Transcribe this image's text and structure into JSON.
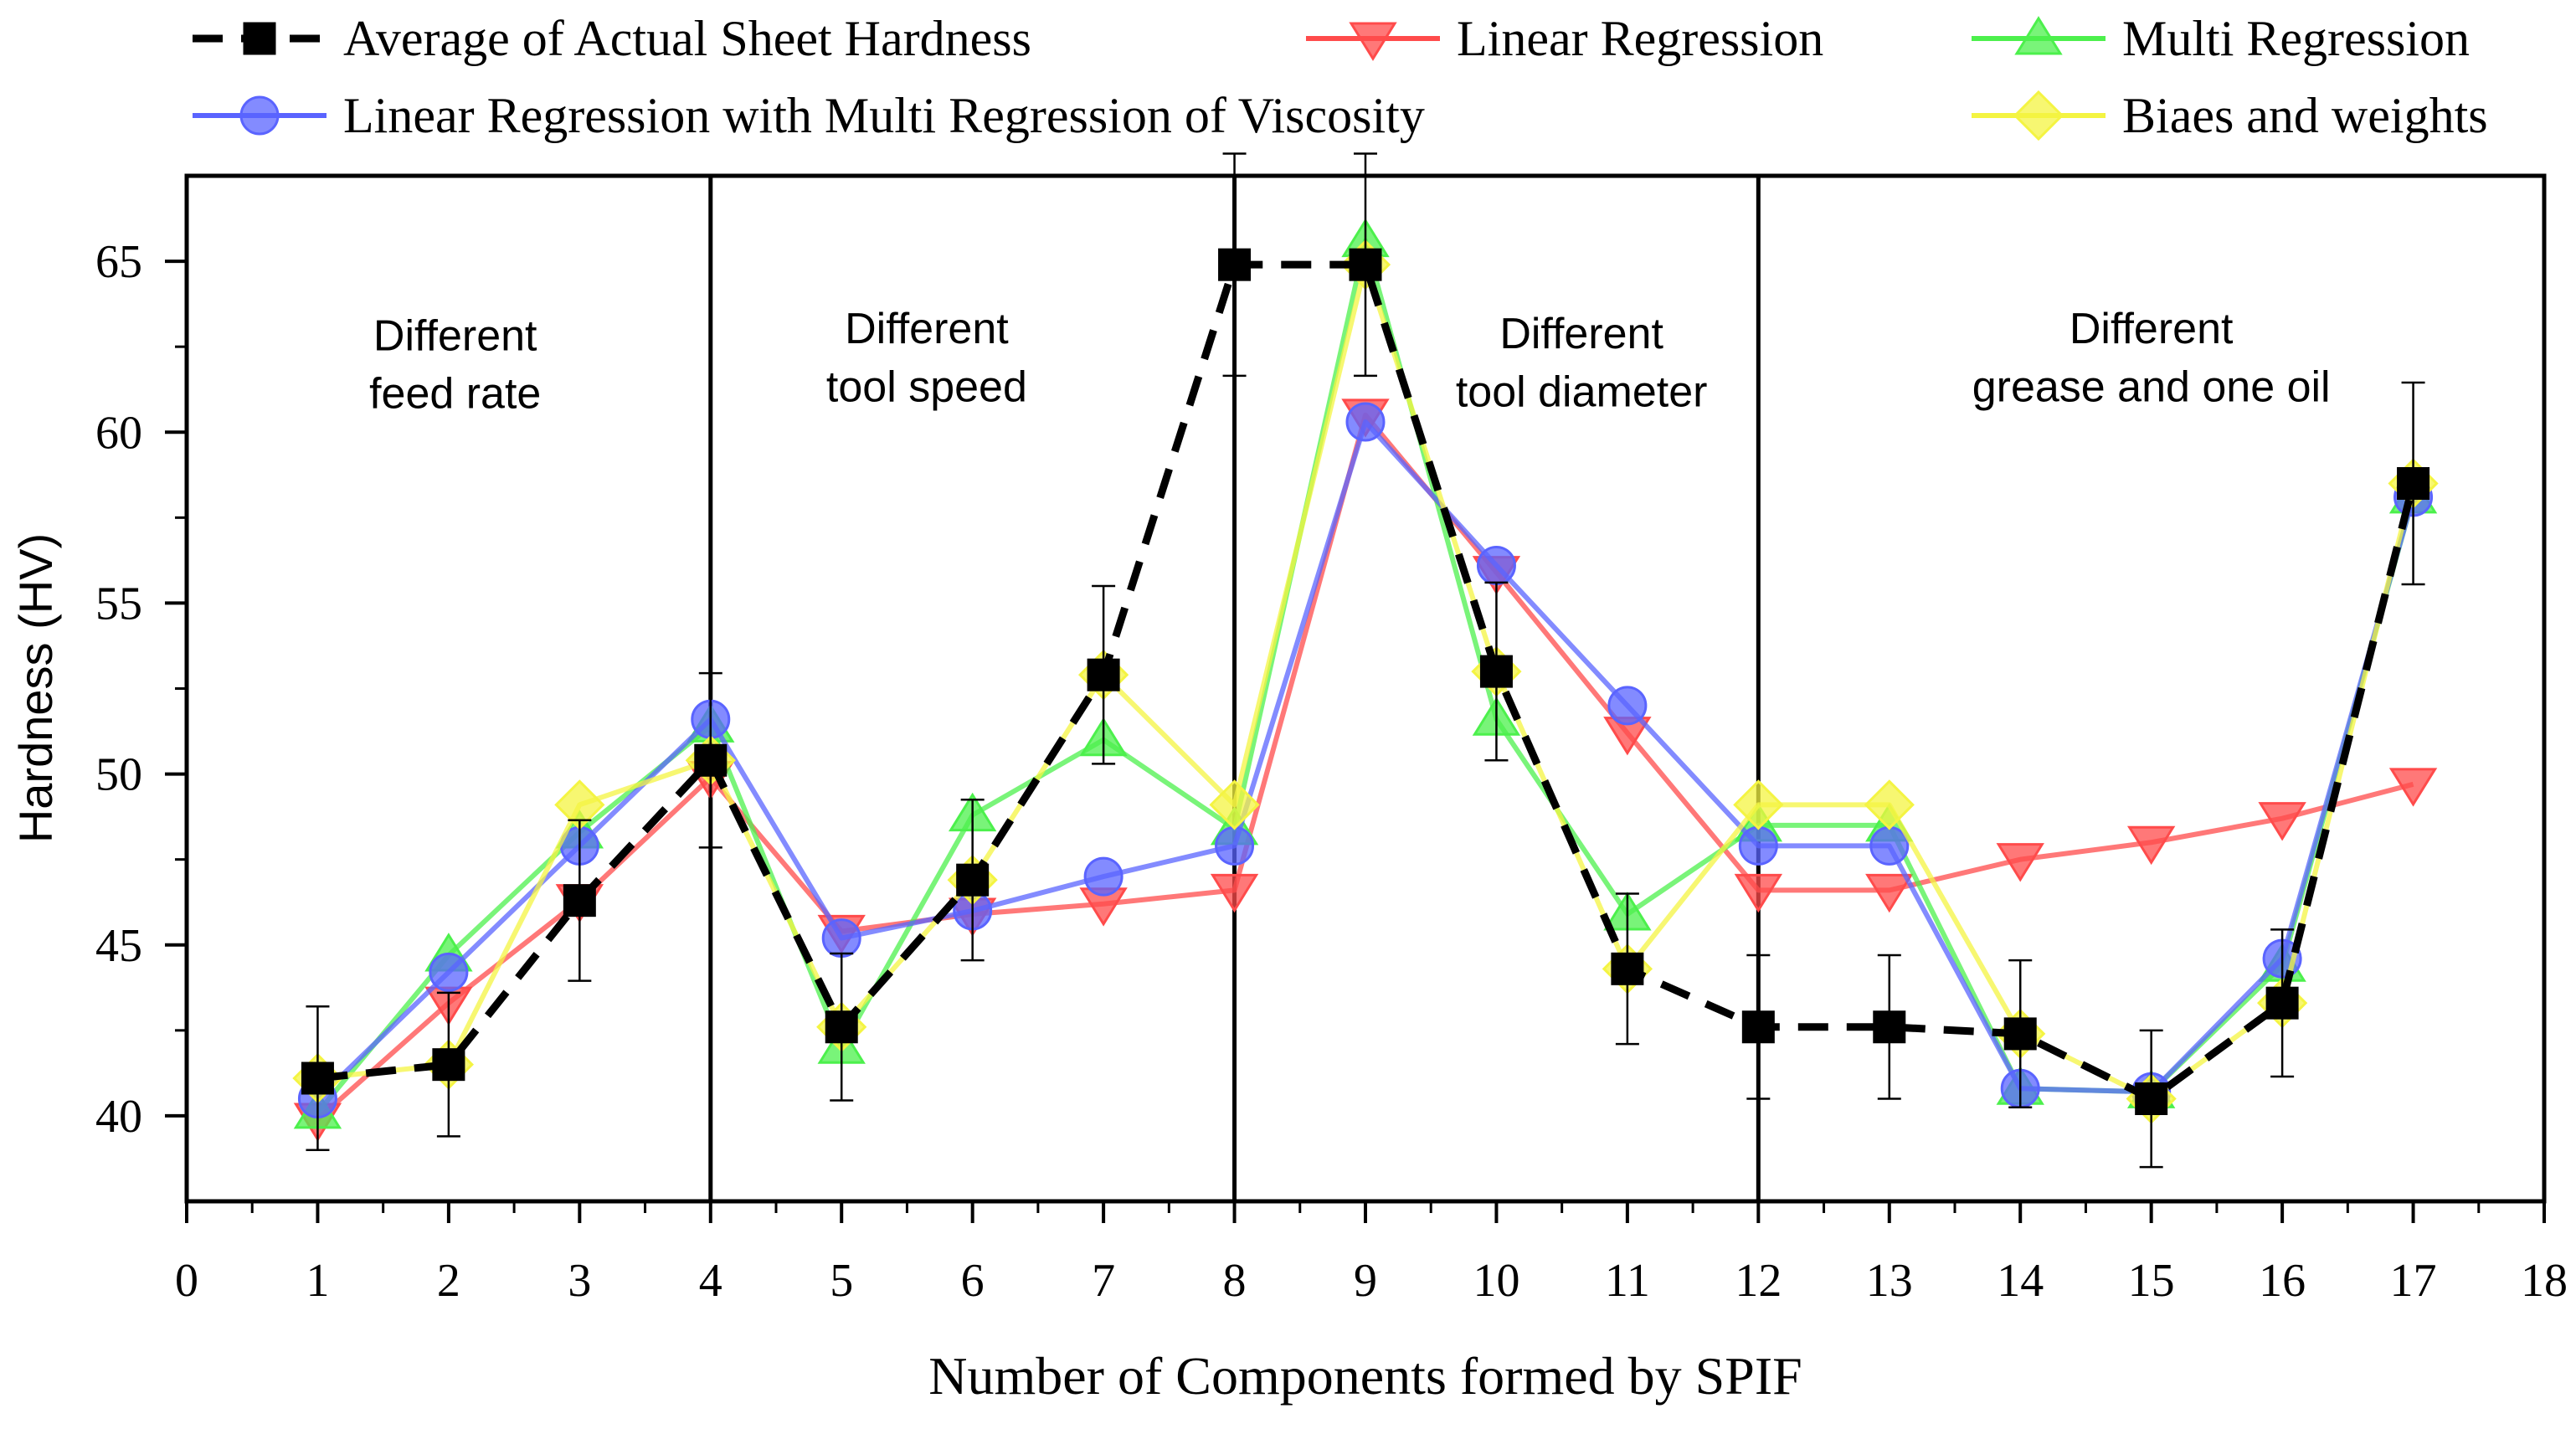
{
  "chart_data": {
    "type": "line",
    "xlabel": "Number of Components formed by SPIF",
    "ylabel": "Hardness (HV)",
    "xlim": [
      0,
      18
    ],
    "ylim": [
      37.5,
      67.5
    ],
    "xticks": [
      0,
      1,
      2,
      3,
      4,
      5,
      6,
      7,
      8,
      9,
      10,
      11,
      12,
      13,
      14,
      15,
      16,
      17,
      18
    ],
    "yticks": [
      40,
      45,
      50,
      55,
      60,
      65
    ],
    "grid": false,
    "legend_position": "top",
    "dividers": [
      4,
      8,
      12
    ],
    "regions": [
      {
        "line1": "Different",
        "line2": "feed rate",
        "x": 2.05,
        "y1": 62.4,
        "y2": 60.7
      },
      {
        "line1": "Different",
        "line2": "tool speed",
        "x": 5.65,
        "y1": 62.6,
        "y2": 60.9
      },
      {
        "line1": "Different",
        "line2": "tool diameter",
        "x": 10.65,
        "y1": 62.45,
        "y2": 60.75
      },
      {
        "line1": "Different",
        "line2": "grease and one oil",
        "x": 15.0,
        "y1": 62.6,
        "y2": 60.9
      }
    ],
    "x": [
      1,
      2,
      3,
      4,
      5,
      6,
      7,
      8,
      9,
      10,
      11,
      12,
      13,
      14,
      15,
      16,
      17
    ],
    "series": [
      {
        "name": "Average of Actual Sheet Hardness",
        "color": "#000000",
        "marker": "square",
        "dashed": true,
        "values": [
          41.1,
          41.5,
          46.3,
          50.4,
          42.6,
          46.9,
          52.9,
          64.9,
          64.9,
          53.0,
          44.3,
          42.6,
          42.6,
          42.4,
          40.5,
          43.3,
          58.5
        ],
        "error": [
          2.1,
          2.1,
          2.35,
          2.55,
          2.15,
          2.35,
          2.6,
          3.25,
          3.25,
          2.6,
          2.2,
          2.1,
          2.1,
          2.15,
          2.0,
          2.15,
          2.95
        ]
      },
      {
        "name": "Linear Regression",
        "color": "#ff4b4b",
        "marker": "triangle-down",
        "values": [
          39.9,
          43.3,
          46.3,
          49.9,
          45.4,
          45.9,
          46.2,
          46.6,
          60.5,
          55.9,
          51.2,
          46.6,
          46.6,
          47.5,
          48.0,
          48.7,
          49.7
        ]
      },
      {
        "name": "Multi Regression",
        "color": "#4cf04c",
        "marker": "triangle-up",
        "values": [
          40.1,
          44.7,
          48.3,
          51.4,
          42.0,
          48.8,
          51.0,
          48.4,
          65.6,
          51.6,
          45.9,
          48.5,
          48.5,
          40.8,
          40.7,
          44.4,
          58.1
        ]
      },
      {
        "name": "Linear Regression with Multi Regression of Viscosity",
        "color": "#5a64ff",
        "marker": "circle",
        "values": [
          40.5,
          44.2,
          47.9,
          51.6,
          45.2,
          46.0,
          47.0,
          47.9,
          60.3,
          56.1,
          52.0,
          47.9,
          47.9,
          40.8,
          40.7,
          44.6,
          58.1
        ]
      },
      {
        "name": "Biaes and weights",
        "color": "#f4f442",
        "marker": "diamond",
        "values": [
          41.1,
          41.5,
          49.1,
          50.4,
          42.6,
          46.9,
          52.9,
          49.1,
          64.9,
          53.0,
          44.3,
          49.1,
          49.1,
          42.4,
          40.5,
          43.3,
          58.5
        ]
      }
    ]
  }
}
